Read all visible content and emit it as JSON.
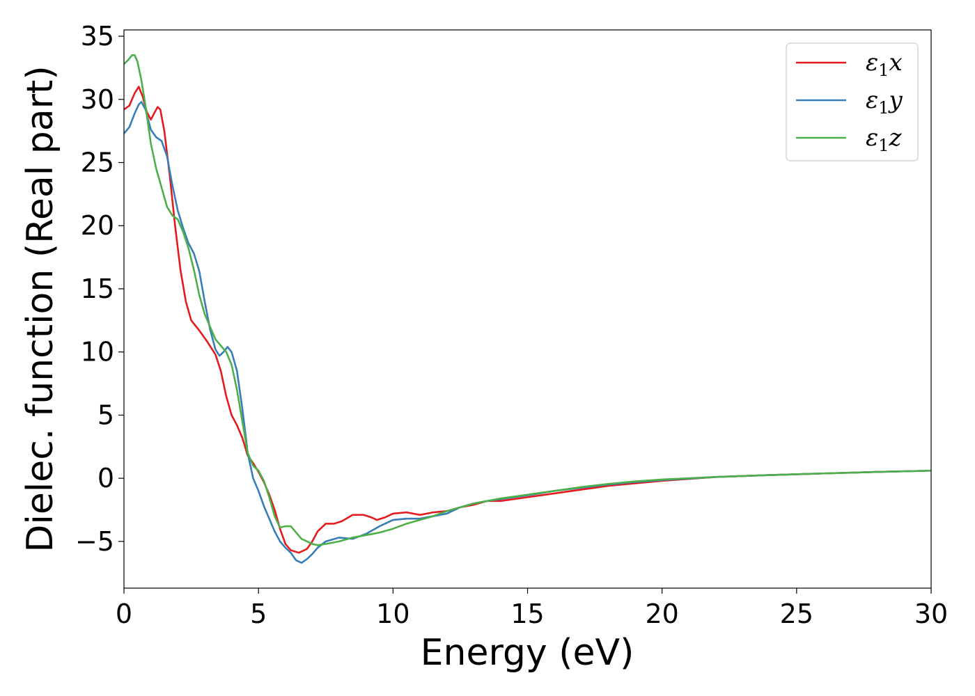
{
  "chart_data": {
    "type": "line",
    "title": "",
    "xlabel": "Energy (eV)",
    "ylabel": "Dielec. function (Real part)",
    "xlim": [
      0,
      30
    ],
    "ylim": [
      -8.7,
      35.5
    ],
    "xticks": [
      0,
      5,
      10,
      15,
      20,
      25,
      30
    ],
    "yticks": [
      -5,
      0,
      5,
      10,
      15,
      20,
      25,
      30,
      35
    ],
    "xtick_labels": [
      "0",
      "5",
      "10",
      "15",
      "20",
      "25",
      "30"
    ],
    "ytick_labels": [
      "−5",
      "0",
      "5",
      "10",
      "15",
      "20",
      "25",
      "30",
      "35"
    ],
    "grid": false,
    "legend_position": "top-right",
    "series": [
      {
        "name": "ε1x",
        "legend_base": "ε",
        "legend_sub": "1",
        "legend_tail": "x",
        "color": "#e41a1c",
        "points": [
          [
            0,
            29.2
          ],
          [
            0.2,
            29.5
          ],
          [
            0.4,
            30.5
          ],
          [
            0.55,
            31.0
          ],
          [
            0.7,
            30.2
          ],
          [
            0.85,
            29.0
          ],
          [
            1.0,
            28.4
          ],
          [
            1.1,
            28.8
          ],
          [
            1.25,
            29.4
          ],
          [
            1.35,
            29.2
          ],
          [
            1.5,
            27.5
          ],
          [
            1.7,
            24.0
          ],
          [
            1.9,
            20.0
          ],
          [
            2.1,
            16.5
          ],
          [
            2.3,
            14.0
          ],
          [
            2.5,
            12.5
          ],
          [
            2.8,
            11.7
          ],
          [
            3.1,
            10.8
          ],
          [
            3.4,
            9.8
          ],
          [
            3.6,
            8.5
          ],
          [
            3.8,
            6.5
          ],
          [
            4.0,
            5.0
          ],
          [
            4.2,
            4.2
          ],
          [
            4.4,
            3.2
          ],
          [
            4.6,
            1.8
          ],
          [
            4.8,
            1.2
          ],
          [
            5.0,
            0.5
          ],
          [
            5.2,
            -0.3
          ],
          [
            5.4,
            -1.3
          ],
          [
            5.6,
            -2.5
          ],
          [
            5.8,
            -4.0
          ],
          [
            6.0,
            -5.2
          ],
          [
            6.2,
            -5.7
          ],
          [
            6.5,
            -5.9
          ],
          [
            6.8,
            -5.6
          ],
          [
            7.0,
            -5.0
          ],
          [
            7.2,
            -4.2
          ],
          [
            7.5,
            -3.6
          ],
          [
            7.8,
            -3.6
          ],
          [
            8.1,
            -3.4
          ],
          [
            8.5,
            -2.9
          ],
          [
            8.9,
            -2.9
          ],
          [
            9.2,
            -3.1
          ],
          [
            9.4,
            -3.3
          ],
          [
            9.7,
            -3.1
          ],
          [
            10.0,
            -2.8
          ],
          [
            10.5,
            -2.7
          ],
          [
            11.0,
            -2.9
          ],
          [
            11.5,
            -2.7
          ],
          [
            12.0,
            -2.6
          ],
          [
            12.5,
            -2.3
          ],
          [
            13.0,
            -2.1
          ],
          [
            13.5,
            -1.8
          ],
          [
            14.0,
            -1.8
          ],
          [
            15.0,
            -1.5
          ],
          [
            16.0,
            -1.2
          ],
          [
            17.0,
            -0.9
          ],
          [
            18.0,
            -0.6
          ],
          [
            19.0,
            -0.4
          ],
          [
            20.0,
            -0.2
          ],
          [
            22.0,
            0.1
          ],
          [
            24.0,
            0.25
          ],
          [
            26.0,
            0.38
          ],
          [
            28.0,
            0.5
          ],
          [
            30.0,
            0.6
          ]
        ]
      },
      {
        "name": "ε1y",
        "legend_base": "ε",
        "legend_sub": "1",
        "legend_tail": "y",
        "color": "#377eb8",
        "points": [
          [
            0,
            27.3
          ],
          [
            0.2,
            27.8
          ],
          [
            0.4,
            28.9
          ],
          [
            0.55,
            29.6
          ],
          [
            0.65,
            29.8
          ],
          [
            0.8,
            29.2
          ],
          [
            1.0,
            27.6
          ],
          [
            1.2,
            27.0
          ],
          [
            1.4,
            26.7
          ],
          [
            1.6,
            25.5
          ],
          [
            1.8,
            23.2
          ],
          [
            2.0,
            21.2
          ],
          [
            2.2,
            19.8
          ],
          [
            2.4,
            18.6
          ],
          [
            2.6,
            17.8
          ],
          [
            2.8,
            16.4
          ],
          [
            3.0,
            14.0
          ],
          [
            3.2,
            11.8
          ],
          [
            3.4,
            10.2
          ],
          [
            3.55,
            9.7
          ],
          [
            3.7,
            10.0
          ],
          [
            3.85,
            10.4
          ],
          [
            4.0,
            10.0
          ],
          [
            4.2,
            8.5
          ],
          [
            4.4,
            5.5
          ],
          [
            4.6,
            2.0
          ],
          [
            4.8,
            0.0
          ],
          [
            5.0,
            -1.0
          ],
          [
            5.2,
            -2.2
          ],
          [
            5.4,
            -3.2
          ],
          [
            5.6,
            -4.2
          ],
          [
            5.8,
            -5.0
          ],
          [
            6.0,
            -5.5
          ],
          [
            6.2,
            -5.9
          ],
          [
            6.4,
            -6.5
          ],
          [
            6.6,
            -6.7
          ],
          [
            6.8,
            -6.4
          ],
          [
            7.0,
            -6.0
          ],
          [
            7.2,
            -5.5
          ],
          [
            7.5,
            -5.0
          ],
          [
            8.0,
            -4.7
          ],
          [
            8.5,
            -4.8
          ],
          [
            9.0,
            -4.4
          ],
          [
            9.5,
            -3.8
          ],
          [
            10.0,
            -3.3
          ],
          [
            10.5,
            -3.2
          ],
          [
            11.0,
            -3.2
          ],
          [
            11.5,
            -3.0
          ],
          [
            12.0,
            -2.8
          ],
          [
            12.5,
            -2.3
          ],
          [
            13.0,
            -2.0
          ],
          [
            13.5,
            -1.8
          ],
          [
            14.0,
            -1.65
          ],
          [
            15.0,
            -1.35
          ],
          [
            16.0,
            -1.0
          ],
          [
            17.0,
            -0.75
          ],
          [
            18.0,
            -0.5
          ],
          [
            19.0,
            -0.3
          ],
          [
            20.0,
            -0.15
          ],
          [
            22.0,
            0.1
          ],
          [
            24.0,
            0.25
          ],
          [
            26.0,
            0.38
          ],
          [
            28.0,
            0.5
          ],
          [
            30.0,
            0.6
          ]
        ]
      },
      {
        "name": "ε1z",
        "legend_base": "ε",
        "legend_sub": "1",
        "legend_tail": "z",
        "color": "#4daf4a",
        "points": [
          [
            0,
            32.8
          ],
          [
            0.15,
            33.1
          ],
          [
            0.3,
            33.5
          ],
          [
            0.4,
            33.5
          ],
          [
            0.5,
            33.0
          ],
          [
            0.65,
            31.5
          ],
          [
            0.8,
            29.5
          ],
          [
            1.0,
            26.5
          ],
          [
            1.2,
            24.5
          ],
          [
            1.4,
            23.0
          ],
          [
            1.6,
            21.5
          ],
          [
            1.8,
            20.8
          ],
          [
            2.0,
            20.5
          ],
          [
            2.2,
            19.5
          ],
          [
            2.4,
            18.2
          ],
          [
            2.6,
            16.5
          ],
          [
            2.8,
            14.5
          ],
          [
            3.0,
            13.0
          ],
          [
            3.2,
            12.0
          ],
          [
            3.4,
            11.0
          ],
          [
            3.6,
            10.5
          ],
          [
            3.8,
            10.0
          ],
          [
            4.0,
            9.0
          ],
          [
            4.2,
            7.0
          ],
          [
            4.4,
            4.5
          ],
          [
            4.6,
            2.0
          ],
          [
            4.8,
            1.0
          ],
          [
            5.0,
            0.6
          ],
          [
            5.2,
            -0.2
          ],
          [
            5.4,
            -1.5
          ],
          [
            5.6,
            -3.0
          ],
          [
            5.8,
            -3.9
          ],
          [
            6.0,
            -3.8
          ],
          [
            6.2,
            -3.8
          ],
          [
            6.4,
            -4.3
          ],
          [
            6.6,
            -4.8
          ],
          [
            6.8,
            -5.0
          ],
          [
            7.0,
            -5.2
          ],
          [
            7.2,
            -5.3
          ],
          [
            7.5,
            -5.2
          ],
          [
            8.0,
            -5.0
          ],
          [
            8.5,
            -4.7
          ],
          [
            9.0,
            -4.5
          ],
          [
            9.5,
            -4.3
          ],
          [
            10.0,
            -4.0
          ],
          [
            10.5,
            -3.6
          ],
          [
            11.0,
            -3.3
          ],
          [
            11.5,
            -3.0
          ],
          [
            12.0,
            -2.6
          ],
          [
            12.5,
            -2.3
          ],
          [
            13.0,
            -2.0
          ],
          [
            13.5,
            -1.8
          ],
          [
            14.0,
            -1.6
          ],
          [
            15.0,
            -1.3
          ],
          [
            16.0,
            -1.0
          ],
          [
            17.0,
            -0.7
          ],
          [
            18.0,
            -0.45
          ],
          [
            19.0,
            -0.25
          ],
          [
            20.0,
            -0.1
          ],
          [
            22.0,
            0.1
          ],
          [
            24.0,
            0.25
          ],
          [
            26.0,
            0.38
          ],
          [
            28.0,
            0.5
          ],
          [
            30.0,
            0.6
          ]
        ]
      }
    ]
  }
}
